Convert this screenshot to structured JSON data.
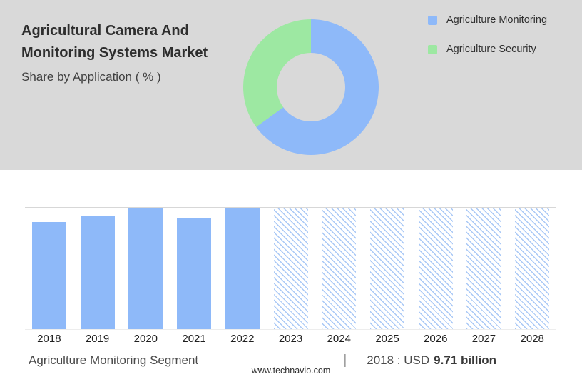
{
  "header": {
    "title_line1": "Agricultural Camera And",
    "title_line2": "Monitoring Systems Market",
    "subtitle": "Share by Application ( % )"
  },
  "colors": {
    "monitoring_blue": "#8eb9f9",
    "security_green": "#9de8a2",
    "top_background_gray": "#d9d9d9"
  },
  "legend": [
    {
      "label": "Agriculture Monitoring",
      "color": "#8eb9f9"
    },
    {
      "label": "Agriculture Security",
      "color": "#9de8a2"
    }
  ],
  "chart_data": [
    {
      "type": "pie",
      "donut": true,
      "title": "Share by Application ( % )",
      "slices": [
        {
          "label": "Agriculture Monitoring",
          "value": 65,
          "color": "#8eb9f9"
        },
        {
          "label": "Agriculture Security",
          "value": 35,
          "color": "#9de8a2"
        }
      ],
      "legend_position": "right"
    },
    {
      "type": "bar",
      "categories": [
        "2018",
        "2019",
        "2020",
        "2021",
        "2022",
        "2023",
        "2024",
        "2025",
        "2026",
        "2027",
        "2028"
      ],
      "values": [
        88,
        93,
        100,
        92,
        100,
        100,
        100,
        100,
        100,
        100,
        100
      ],
      "styles": [
        "solid",
        "solid",
        "solid",
        "solid",
        "solid",
        "hatch",
        "hatch",
        "hatch",
        "hatch",
        "hatch",
        "hatch"
      ],
      "bar_color": "#8eb9f9",
      "ylim": [
        0,
        100
      ],
      "grid": "top-line-only",
      "known_values": {
        "2018": "USD 9.71 billion"
      }
    }
  ],
  "footer": {
    "segment_label": "Agriculture Monitoring Segment",
    "separator": "|",
    "value_prefix": "2018 : USD",
    "value_bold": "9.71 billion",
    "website": "www.technavio.com"
  }
}
